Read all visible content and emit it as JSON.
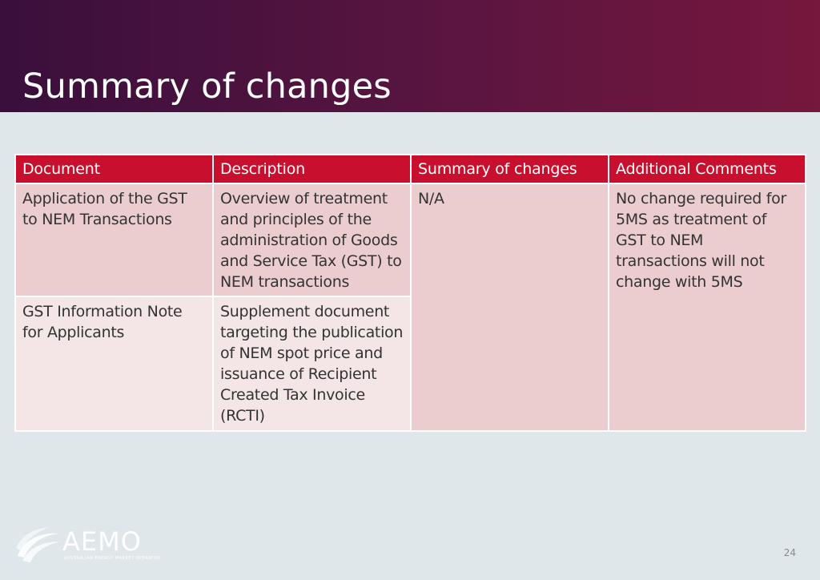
{
  "slide": {
    "title": "Summary of changes",
    "page_number": "24"
  },
  "colors": {
    "header_gradient_start": "#3a0f3c",
    "header_gradient_end": "#76173d",
    "table_header": "#c8102e",
    "row_dark": "#ebcdd0",
    "row_light": "#f4e5e6",
    "background": "#dfe7ea"
  },
  "table": {
    "headers": [
      "Document",
      "Description",
      "Summary of changes",
      "Additional Comments"
    ],
    "rows": [
      {
        "document": "Application of the GST to NEM Transactions",
        "description": "Overview of treatment and principles of the administration of Goods and Service Tax (GST) to NEM transactions"
      },
      {
        "document": "GST Information Note for Applicants",
        "description": "Supplement document targeting the publication of NEM spot price and issuance of Recipient Created Tax Invoice (RCTI)"
      }
    ],
    "summary_of_changes": "N/A",
    "additional_comments": "No change required for 5MS as treatment of GST to NEM transactions will not change with 5MS"
  },
  "logo": {
    "name": "AEMO",
    "tagline": "AUSTRALIAN ENERGY MARKET OPERATOR",
    "icon": "aemo-swirl-icon"
  }
}
